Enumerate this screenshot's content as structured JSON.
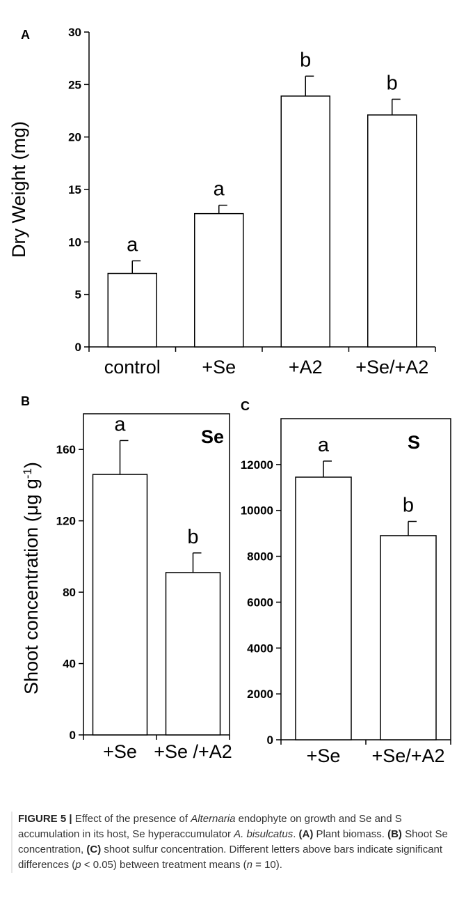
{
  "colors": {
    "bar_fill": "#ffffff",
    "ink": "#000000",
    "caption_text": "#333333",
    "caption_rule": "#e6e6e6"
  },
  "chart_data": [
    {
      "type": "bar",
      "panel": "A",
      "categories": [
        "control",
        "+Se",
        "+A2",
        "+Se/+A2"
      ],
      "values": [
        7.0,
        12.7,
        23.9,
        22.1
      ],
      "errors": [
        1.2,
        0.8,
        1.9,
        1.5
      ],
      "letters": [
        "a",
        "a",
        "b",
        "b"
      ],
      "ylabel": "Dry Weight (mg)",
      "ylim": [
        0,
        30
      ],
      "yticks": [
        "0",
        "5",
        "10",
        "15",
        "20",
        "25",
        "30"
      ],
      "grid": false
    },
    {
      "type": "bar",
      "panel": "B",
      "title": "Se",
      "categories": [
        "+Se",
        "+Se /+A2"
      ],
      "values": [
        146,
        91
      ],
      "errors": [
        19,
        11
      ],
      "letters": [
        "a",
        "b"
      ],
      "ylabel": "Shoot concentration (μg g-1)",
      "ylim": [
        0,
        180
      ],
      "yticks": [
        "0",
        "40",
        "80",
        "120",
        "160"
      ],
      "grid": false
    },
    {
      "type": "bar",
      "panel": "C",
      "title": "S",
      "categories": [
        "+Se",
        "+Se/+A2"
      ],
      "values": [
        11450,
        8900
      ],
      "errors": [
        700,
        620
      ],
      "letters": [
        "a",
        "b"
      ],
      "ylim": [
        0,
        14000
      ],
      "yticks": [
        "0",
        "2000",
        "4000",
        "6000",
        "8000",
        "10000",
        "12000"
      ],
      "grid": false
    }
  ],
  "caption": {
    "label": "FIGURE 5 |",
    "t1": " Effect of the presence of ",
    "genus": "Alternaria",
    "t2": " endophyte on growth and Se and S accumulation in its host, Se hyperaccumulator ",
    "species": "A. bisulcatus",
    "t3": ". ",
    "a_tag": "(A)",
    "a_text": " Plant biomass. ",
    "b_tag": "(B)",
    "b_text": " Shoot Se concentration, ",
    "c_tag": "(C)",
    "c_text": " shoot sulfur concentration. Different letters above bars indicate significant differences (",
    "p_var": "p",
    "p_text": " < 0.05) between treatment means (",
    "n_var": "n",
    "n_text": " = 10)."
  }
}
